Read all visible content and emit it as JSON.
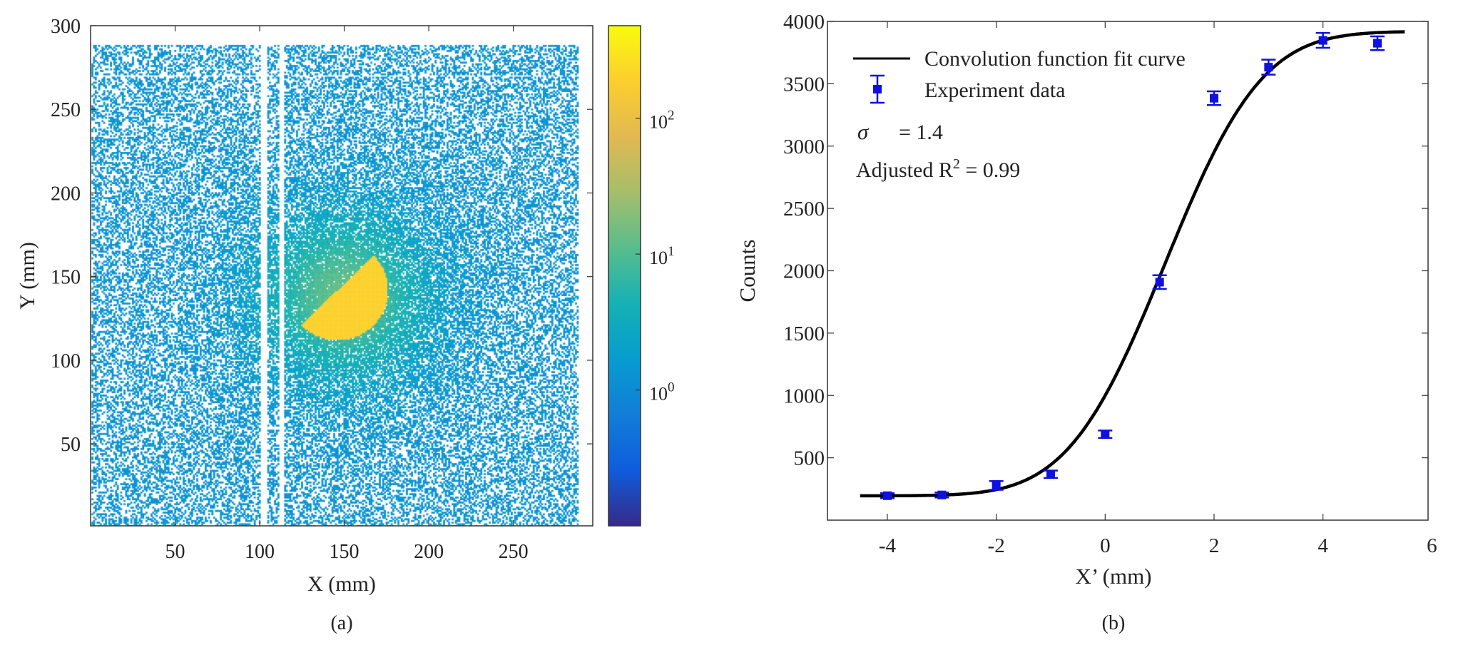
{
  "chart_data": [
    {
      "type": "heatmap",
      "panel_label": "(a)",
      "xlabel": "X (mm)",
      "ylabel": "Y (mm)",
      "xlim": [
        0,
        297
      ],
      "ylim": [
        1,
        300
      ],
      "xticks": [
        50,
        100,
        150,
        200,
        250
      ],
      "yticks": [
        50,
        100,
        150,
        200,
        250,
        300
      ],
      "colorbar": {
        "scale": "log",
        "colormap": "parula",
        "clim": [
          0.1,
          480
        ],
        "ticks": [
          1,
          10,
          100
        ],
        "tick_labels": [
          {
            "base": "10",
            "exp": "0"
          },
          {
            "base": "10",
            "exp": "1"
          },
          {
            "base": "10",
            "exp": "2"
          }
        ]
      },
      "features": {
        "background_level": 1,
        "central_halo_level": 6,
        "half_disc_level": 200,
        "half_disc_color": "#f8b93a",
        "blank_columns_mm": [
          [
            101,
            104
          ],
          [
            112,
            114
          ]
        ]
      },
      "grid": false
    },
    {
      "type": "scatter",
      "panel_label": "(b)",
      "xlabel": "X’  (mm)",
      "ylabel": "Counts",
      "xlim": [
        -5.1,
        5.93
      ],
      "ylim": [
        0,
        4000
      ],
      "xticks": [
        -4,
        -2,
        0,
        2,
        4,
        6
      ],
      "yticks": [
        500,
        1000,
        1500,
        2000,
        2500,
        3000,
        3500,
        4000
      ],
      "grid": false,
      "legend_position": "top-left",
      "series": [
        {
          "name": "Convolution function fit curve",
          "kind": "line",
          "color": "#000000",
          "model": {
            "baseline": 195,
            "plateau": 3920,
            "center": 1.1,
            "sigma": 1.4,
            "x_range": [
              -4.5,
              5.5
            ]
          }
        },
        {
          "name": "Experiment data",
          "kind": "errorbar",
          "color": "#1010e0",
          "x": [
            -4,
            -3,
            -2,
            -1,
            0,
            1,
            2,
            3,
            4,
            5
          ],
          "y": [
            196,
            202,
            278,
            368,
            689,
            1909,
            3384,
            3633,
            3848,
            3825
          ],
          "err": [
            20,
            20,
            35,
            30,
            30,
            55,
            55,
            60,
            60,
            55
          ]
        }
      ],
      "annotations": {
        "sigma_symbol": "σ",
        "sigma_text": "= 1.4",
        "r2_prefix": "Adjusted R",
        "r2_sup": "2",
        "r2_suffix": " = 0.99"
      }
    }
  ]
}
